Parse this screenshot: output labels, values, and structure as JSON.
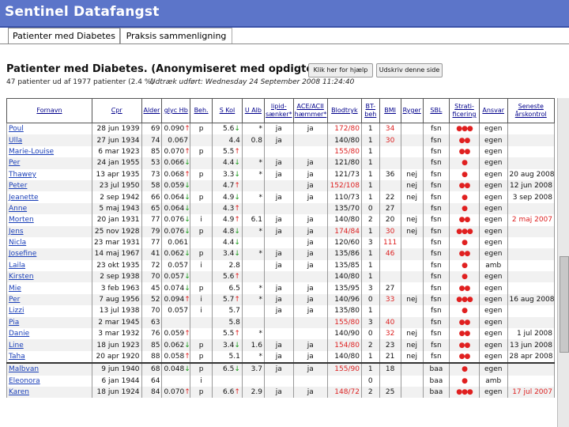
{
  "app_title": "Sentinel Datafangst",
  "tabs": [
    {
      "label": "Patienter med Diabetes"
    },
    {
      "label": "Praksis sammenligning"
    }
  ],
  "page_title": "Patienter med Diabetes. (Anonymiseret med opdigtede navne)",
  "help_button": "Klik her for hjælp",
  "print_button": "Udskriv denne side",
  "patient_count": "47 patienter ud af 1977 patienter (2.4 %)",
  "extract_info": "Udtræk udført: Wednesday 24 September 2008 11:24:40",
  "columns": [
    "Fornavn",
    "Cpr",
    "Alder",
    "glyc Hb",
    "Beh.",
    "S Kol",
    "U Alb",
    "lipid-sænker*",
    "ACE/ACII hæmmer*",
    "Blodtryk",
    "BT-beh",
    "BMI",
    "Ryger",
    "SBL",
    "Strati-ficering",
    "Ansvar",
    "Seneste årskontrol"
  ],
  "colors": {
    "topbar": "#5c75c9",
    "link": "#1a3fb8",
    "alert": "#d22222",
    "ok": "#189a18"
  },
  "rows": [
    {
      "name": "Poul",
      "cpr": "28 jun 1939",
      "age": "69",
      "hb": "0.090",
      "hbdir": "up",
      "beh": "p",
      "kol": "5.6",
      "koldir": "down",
      "alb": "*",
      "lip": "ja",
      "ace": "ja",
      "bp": "172/80",
      "bpred": true,
      "bt": "1",
      "bmi": "34",
      "bmired": true,
      "ryg": "",
      "sbl": "fsn",
      "strat": "●●●",
      "ansvar": "egen",
      "aars": "",
      "aarsred": false
    },
    {
      "name": "Ulla",
      "cpr": "27 jun 1934",
      "age": "74",
      "hb": "0.067",
      "hbdir": "",
      "beh": "",
      "kol": "4.4",
      "koldir": "",
      "alb": "0.8",
      "lip": "ja",
      "ace": "",
      "bp": "140/80",
      "bpred": false,
      "bt": "1",
      "bmi": "30",
      "bmired": true,
      "ryg": "",
      "sbl": "fsn",
      "strat": "●●",
      "ansvar": "egen",
      "aars": "",
      "aarsred": false
    },
    {
      "name": "Marie-Louise",
      "cpr": "6 mar 1923",
      "age": "85",
      "hb": "0.070",
      "hbdir": "up",
      "beh": "p",
      "kol": "5.5",
      "koldir": "up",
      "alb": "",
      "lip": "",
      "ace": "",
      "bp": "155/80",
      "bpred": true,
      "bt": "1",
      "bmi": "",
      "bmired": false,
      "ryg": "",
      "sbl": "fsn",
      "strat": "●●",
      "ansvar": "egen",
      "aars": "",
      "aarsred": false
    },
    {
      "name": "Per",
      "cpr": "24 jan 1955",
      "age": "53",
      "hb": "0.066",
      "hbdir": "down",
      "beh": "",
      "kol": "4.4",
      "koldir": "down",
      "alb": "*",
      "lip": "ja",
      "ace": "ja",
      "bp": "121/80",
      "bpred": false,
      "bt": "1",
      "bmi": "",
      "bmired": false,
      "ryg": "",
      "sbl": "fsn",
      "strat": "●",
      "ansvar": "egen",
      "aars": "",
      "aarsred": false
    },
    {
      "name": "Thawey",
      "cpr": "13 apr 1935",
      "age": "73",
      "hb": "0.068",
      "hbdir": "up",
      "beh": "p",
      "kol": "3.3",
      "koldir": "down",
      "alb": "*",
      "lip": "ja",
      "ace": "ja",
      "bp": "121/73",
      "bpred": false,
      "bt": "1",
      "bmi": "36",
      "bmired": false,
      "ryg": "nej",
      "sbl": "fsn",
      "strat": "●",
      "ansvar": "egen",
      "aars": "20 aug 2008",
      "aarsred": false
    },
    {
      "name": "Peter",
      "cpr": "23 jul 1950",
      "age": "58",
      "hb": "0.059",
      "hbdir": "down",
      "beh": "",
      "kol": "4.7",
      "koldir": "up",
      "alb": "",
      "lip": "",
      "ace": "ja",
      "bp": "152/108",
      "bpred": true,
      "bt": "1",
      "bmi": "",
      "bmired": false,
      "ryg": "nej",
      "sbl": "fsn",
      "strat": "●●",
      "ansvar": "egen",
      "aars": "12 jun 2008",
      "aarsred": false
    },
    {
      "name": "Jeanette",
      "cpr": "2 sep 1942",
      "age": "66",
      "hb": "0.064",
      "hbdir": "down",
      "beh": "p",
      "kol": "4.9",
      "koldir": "down",
      "alb": "*",
      "lip": "ja",
      "ace": "ja",
      "bp": "110/73",
      "bpred": false,
      "bt": "1",
      "bmi": "22",
      "bmired": false,
      "ryg": "nej",
      "sbl": "fsn",
      "strat": "●",
      "ansvar": "egen",
      "aars": "3 sep 2008",
      "aarsred": false
    },
    {
      "name": "Anne",
      "cpr": "5 maj 1943",
      "age": "65",
      "hb": "0.064",
      "hbdir": "down",
      "beh": "",
      "kol": "4.3",
      "koldir": "up",
      "alb": "",
      "lip": "",
      "ace": "",
      "bp": "135/70",
      "bpred": false,
      "bt": "0",
      "bmi": "27",
      "bmired": false,
      "ryg": "",
      "sbl": "fsn",
      "strat": "●",
      "ansvar": "egen",
      "aars": "",
      "aarsred": false
    },
    {
      "name": "Morten",
      "cpr": "20 jan 1931",
      "age": "77",
      "hb": "0.076",
      "hbdir": "down",
      "beh": "i",
      "kol": "4.9",
      "koldir": "up",
      "alb": "6.1",
      "lip": "ja",
      "ace": "ja",
      "bp": "140/80",
      "bpred": false,
      "bt": "2",
      "bmi": "20",
      "bmired": false,
      "ryg": "nej",
      "sbl": "fsn",
      "strat": "●●",
      "ansvar": "egen",
      "aars": "2 maj 2007",
      "aarsred": true
    },
    {
      "name": "Jens",
      "cpr": "25 nov 1928",
      "age": "79",
      "hb": "0.076",
      "hbdir": "down",
      "beh": "p",
      "kol": "4.8",
      "koldir": "down",
      "alb": "*",
      "lip": "ja",
      "ace": "ja",
      "bp": "174/84",
      "bpred": true,
      "bt": "1",
      "bmi": "30",
      "bmired": true,
      "ryg": "nej",
      "sbl": "fsn",
      "strat": "●●●",
      "ansvar": "egen",
      "aars": "",
      "aarsred": false
    },
    {
      "name": "Nicla",
      "cpr": "23 mar 1931",
      "age": "77",
      "hb": "0.061",
      "hbdir": "",
      "beh": "",
      "kol": "4.4",
      "koldir": "down",
      "alb": "",
      "lip": "",
      "ace": "ja",
      "bp": "120/60",
      "bpred": false,
      "bt": "3",
      "bmi": "111",
      "bmired": true,
      "ryg": "",
      "sbl": "fsn",
      "strat": "●",
      "ansvar": "egen",
      "aars": "",
      "aarsred": false
    },
    {
      "name": "Josefine",
      "cpr": "14 maj 1967",
      "age": "41",
      "hb": "0.062",
      "hbdir": "down",
      "beh": "p",
      "kol": "3.4",
      "koldir": "down",
      "alb": "*",
      "lip": "ja",
      "ace": "ja",
      "bp": "135/86",
      "bpred": false,
      "bt": "1",
      "bmi": "46",
      "bmired": true,
      "ryg": "",
      "sbl": "fsn",
      "strat": "●●",
      "ansvar": "egen",
      "aars": "",
      "aarsred": false
    },
    {
      "name": "Laila",
      "cpr": "23 okt 1935",
      "age": "72",
      "hb": "0.057",
      "hbdir": "",
      "beh": "i",
      "kol": "2.8",
      "koldir": "",
      "alb": "",
      "lip": "ja",
      "ace": "ja",
      "bp": "135/85",
      "bpred": false,
      "bt": "1",
      "bmi": "",
      "bmired": false,
      "ryg": "",
      "sbl": "fsn",
      "strat": "●",
      "ansvar": "amb",
      "aars": "",
      "aarsred": false
    },
    {
      "name": "Kirsten",
      "cpr": "2 sep 1938",
      "age": "70",
      "hb": "0.057",
      "hbdir": "down",
      "beh": "",
      "kol": "5.6",
      "koldir": "up",
      "alb": "",
      "lip": "",
      "ace": "",
      "bp": "140/80",
      "bpred": false,
      "bt": "1",
      "bmi": "",
      "bmired": false,
      "ryg": "",
      "sbl": "fsn",
      "strat": "●",
      "ansvar": "egen",
      "aars": "",
      "aarsred": false
    },
    {
      "name": "Mie",
      "cpr": "3 feb 1963",
      "age": "45",
      "hb": "0.074",
      "hbdir": "down",
      "beh": "p",
      "kol": "6.5",
      "koldir": "",
      "alb": "*",
      "lip": "ja",
      "ace": "ja",
      "bp": "135/95",
      "bpred": false,
      "bt": "3",
      "bmi": "27",
      "bmired": false,
      "ryg": "",
      "sbl": "fsn",
      "strat": "●●",
      "ansvar": "egen",
      "aars": "",
      "aarsred": false
    },
    {
      "name": "Per",
      "cpr": "7 aug 1956",
      "age": "52",
      "hb": "0.094",
      "hbdir": "up",
      "beh": "i",
      "kol": "5.7",
      "koldir": "up",
      "alb": "*",
      "lip": "ja",
      "ace": "ja",
      "bp": "140/96",
      "bpred": false,
      "bt": "0",
      "bmi": "33",
      "bmired": true,
      "ryg": "nej",
      "sbl": "fsn",
      "strat": "●●●",
      "ansvar": "egen",
      "aars": "16 aug 2008",
      "aarsred": false
    },
    {
      "name": "Lizzi",
      "cpr": "13 jul 1938",
      "age": "70",
      "hb": "0.057",
      "hbdir": "",
      "beh": "i",
      "kol": "5.7",
      "koldir": "",
      "alb": "",
      "lip": "ja",
      "ace": "ja",
      "bp": "135/80",
      "bpred": false,
      "bt": "1",
      "bmi": "",
      "bmired": false,
      "ryg": "",
      "sbl": "fsn",
      "strat": "●",
      "ansvar": "egen",
      "aars": "",
      "aarsred": false
    },
    {
      "name": "Pia",
      "cpr": "2 mar 1945",
      "age": "63",
      "hb": "",
      "hbdir": "",
      "beh": "",
      "kol": "5.8",
      "koldir": "",
      "alb": "",
      "lip": "",
      "ace": "",
      "bp": "155/80",
      "bpred": true,
      "bt": "3",
      "bmi": "40",
      "bmired": true,
      "ryg": "",
      "sbl": "fsn",
      "strat": "●●",
      "ansvar": "egen",
      "aars": "",
      "aarsred": false
    },
    {
      "name": "Danie",
      "cpr": "3 mar 1932",
      "age": "76",
      "hb": "0.059",
      "hbdir": "up",
      "beh": "",
      "kol": "5.5",
      "koldir": "up",
      "alb": "*",
      "lip": "",
      "ace": "",
      "bp": "140/90",
      "bpred": false,
      "bt": "0",
      "bmi": "32",
      "bmired": true,
      "ryg": "nej",
      "sbl": "fsn",
      "strat": "●●",
      "ansvar": "egen",
      "aars": "1 jul 2008",
      "aarsred": false
    },
    {
      "name": "Line",
      "cpr": "18 jun 1923",
      "age": "85",
      "hb": "0.062",
      "hbdir": "down",
      "beh": "p",
      "kol": "3.4",
      "koldir": "down",
      "alb": "1.6",
      "lip": "ja",
      "ace": "ja",
      "bp": "154/80",
      "bpred": true,
      "bt": "2",
      "bmi": "23",
      "bmired": false,
      "ryg": "nej",
      "sbl": "fsn",
      "strat": "●●",
      "ansvar": "egen",
      "aars": "13 jun 2008",
      "aarsred": false
    },
    {
      "name": "Taha",
      "cpr": "20 apr 1920",
      "age": "88",
      "hb": "0.058",
      "hbdir": "up",
      "beh": "p",
      "kol": "5.1",
      "koldir": "",
      "alb": "*",
      "lip": "ja",
      "ace": "ja",
      "bp": "140/80",
      "bpred": false,
      "bt": "1",
      "bmi": "21",
      "bmired": false,
      "ryg": "nej",
      "sbl": "fsn",
      "strat": "●●",
      "ansvar": "egen",
      "aars": "28 apr 2008",
      "aarsred": false
    },
    {
      "name": "Malbvan",
      "cpr": "9 jun 1940",
      "age": "68",
      "hb": "0.048",
      "hbdir": "down",
      "beh": "p",
      "kol": "6.5",
      "koldir": "down",
      "alb": "3.7",
      "lip": "ja",
      "ace": "ja",
      "bp": "155/90",
      "bpred": true,
      "bt": "1",
      "bmi": "18",
      "bmired": false,
      "ryg": "",
      "sbl": "baa",
      "strat": "●",
      "ansvar": "egen",
      "aars": "",
      "aarsred": false
    },
    {
      "name": "Eleonora",
      "cpr": "6 jan 1944",
      "age": "64",
      "hb": "",
      "hbdir": "",
      "beh": "i",
      "kol": "",
      "koldir": "",
      "alb": "",
      "lip": "",
      "ace": "",
      "bp": "",
      "bpred": false,
      "bt": "0",
      "bmi": "",
      "bmired": false,
      "ryg": "",
      "sbl": "baa",
      "strat": "●",
      "ansvar": "amb",
      "aars": "",
      "aarsred": false
    },
    {
      "name": "Karen",
      "cpr": "18 jun 1924",
      "age": "84",
      "hb": "0.070",
      "hbdir": "up",
      "beh": "p",
      "kol": "6.6",
      "koldir": "up",
      "alb": "2.9",
      "lip": "ja",
      "ace": "ja",
      "bp": "148/72",
      "bpred": true,
      "bt": "2",
      "bmi": "25",
      "bmired": false,
      "ryg": "",
      "sbl": "baa",
      "strat": "●●●",
      "ansvar": "egen",
      "aars": "17 jul 2007",
      "aarsred": true
    }
  ]
}
